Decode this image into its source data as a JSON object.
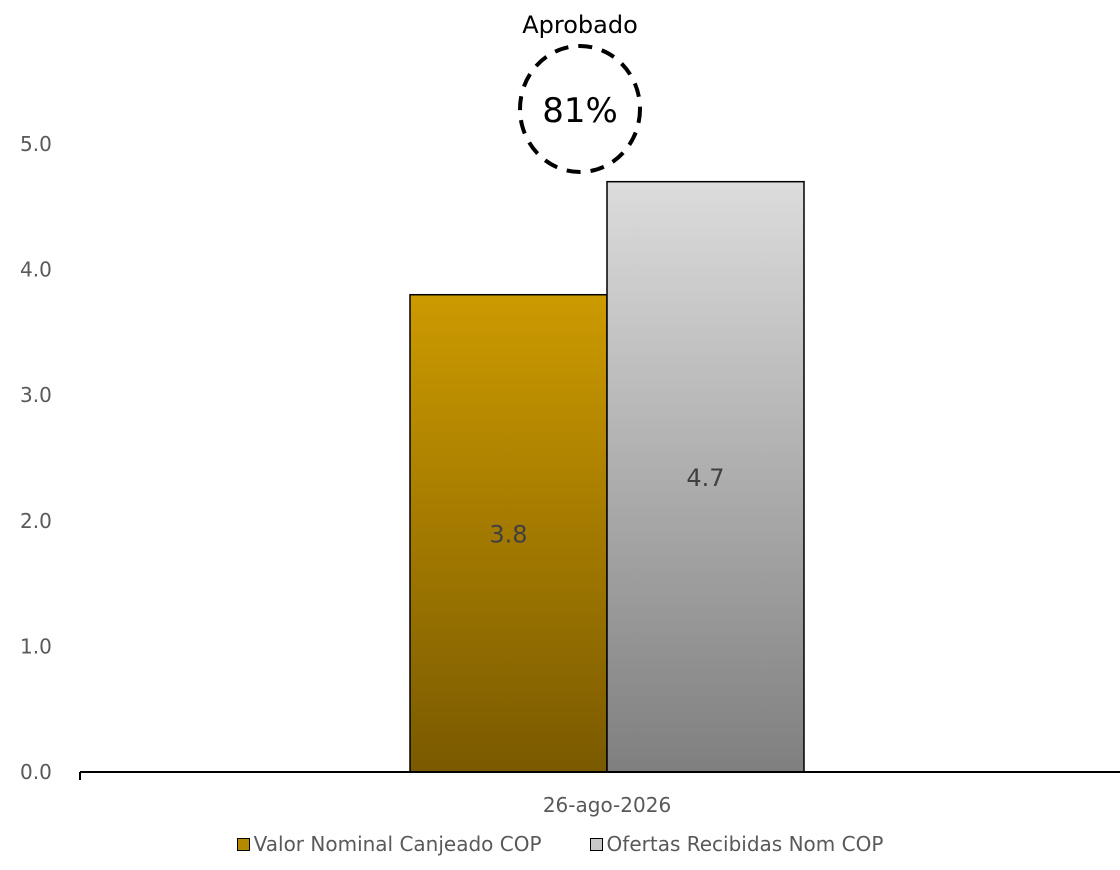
{
  "chart_data": {
    "type": "bar",
    "categories": [
      "26-ago-2026"
    ],
    "series": [
      {
        "name": "Valor Nominal Canjeado COP",
        "values": [
          3.8
        ],
        "color": "#c99700"
      },
      {
        "name": "Ofertas Recibidas Nom COP",
        "values": [
          4.7
        ],
        "color": "#d9d9d9"
      }
    ],
    "data_labels": [
      "3.8",
      "4.7"
    ],
    "ylim": [
      0,
      5
    ],
    "yticks": [
      "0.0",
      "1.0",
      "2.0",
      "3.0",
      "4.0",
      "5.0"
    ],
    "grid": false,
    "legend_position": "bottom",
    "annotation": {
      "title": "Aprobado",
      "value": "81%"
    }
  }
}
